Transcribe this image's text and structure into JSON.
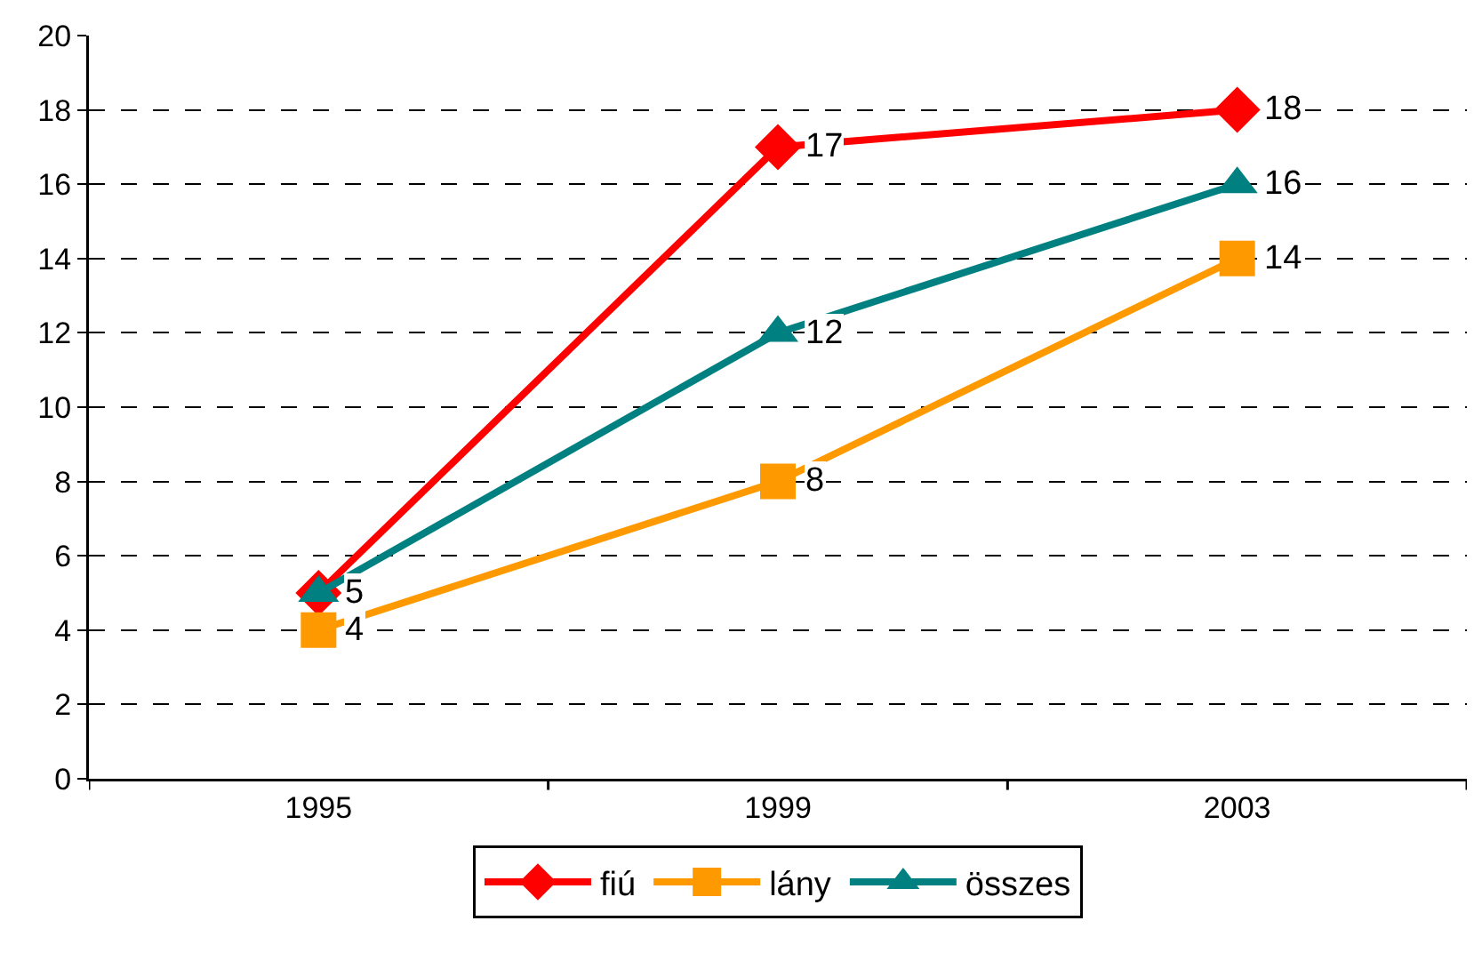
{
  "chart_data": {
    "type": "line",
    "categories": [
      "1995",
      "1999",
      "2003"
    ],
    "series": [
      {
        "name": "fiú",
        "color": "#ff0000",
        "marker": "diamond",
        "values": [
          5,
          17,
          18
        ],
        "value_labels": [
          "5",
          "17",
          "18"
        ]
      },
      {
        "name": "lány",
        "color": "#ff9900",
        "marker": "square",
        "values": [
          4,
          8,
          14
        ],
        "value_labels": [
          "4",
          "8",
          "14"
        ]
      },
      {
        "name": "összes",
        "color": "#008080",
        "marker": "triangle",
        "values": [
          5,
          12,
          16
        ],
        "value_labels": [
          null,
          "12",
          "16"
        ]
      }
    ],
    "ylim": [
      0,
      20
    ],
    "yticks": [
      0,
      2,
      4,
      6,
      8,
      10,
      12,
      14,
      16,
      18,
      20
    ],
    "grid": "y",
    "legend": "bottom",
    "line_style": "solid"
  }
}
